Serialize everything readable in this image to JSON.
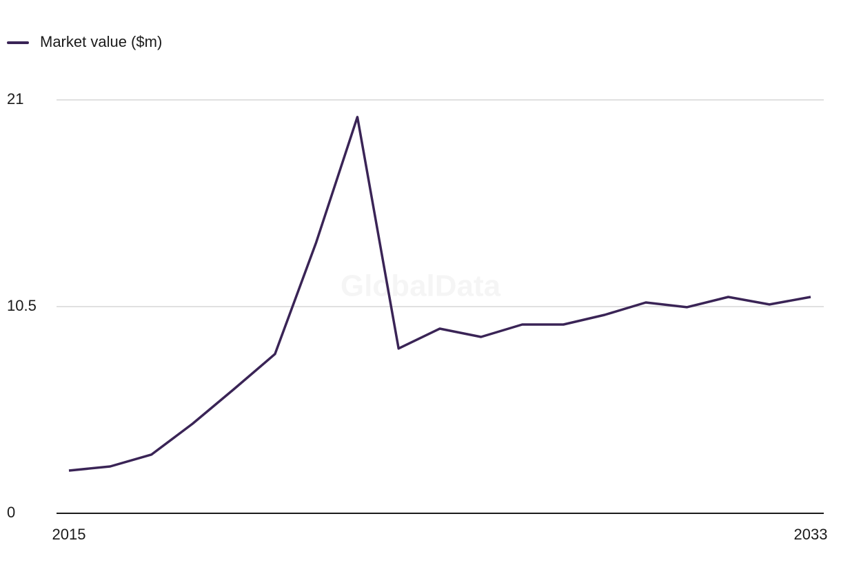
{
  "chart_data": {
    "type": "line",
    "watermark": "GlobalData",
    "x": [
      2015,
      2016,
      2017,
      2018,
      2019,
      2020,
      2021,
      2022,
      2023,
      2024,
      2025,
      2026,
      2027,
      2028,
      2029,
      2030,
      2031,
      2032,
      2033
    ],
    "series": [
      {
        "name": "Market value ($m)",
        "color": "#3a2456",
        "values": [
          2.17,
          2.38,
          2.98,
          4.55,
          6.3,
          8.09,
          13.76,
          20.13,
          8.37,
          9.38,
          8.96,
          9.59,
          9.59,
          10.08,
          10.71,
          10.47,
          10.99,
          10.61,
          10.99
        ]
      }
    ],
    "xlim": [
      2015,
      2033
    ],
    "xticks": [
      2015,
      2033
    ],
    "ylim": [
      0,
      21
    ],
    "yticks": [
      0,
      10.5,
      21
    ],
    "grid": true,
    "legend": "top-left"
  }
}
